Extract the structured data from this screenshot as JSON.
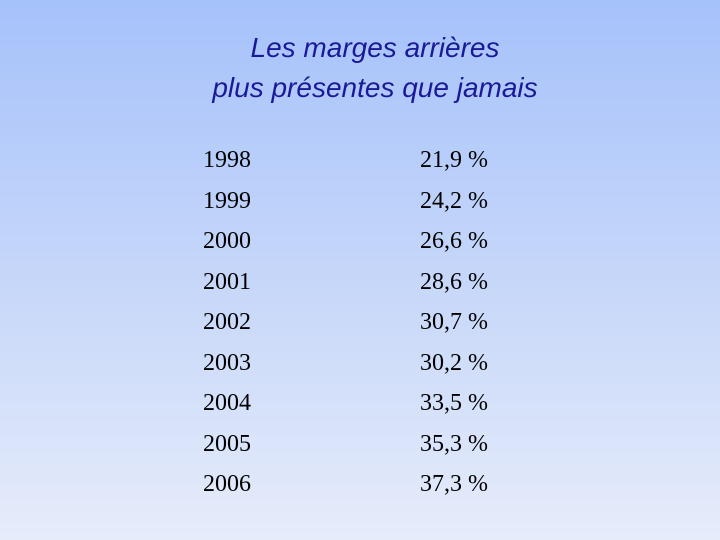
{
  "title": {
    "line1": "Les marges arrières",
    "line2": "plus présentes que jamais"
  },
  "rows": [
    {
      "year": "1998",
      "value": "21,9 %"
    },
    {
      "year": "1999",
      "value": "24,2 %"
    },
    {
      "year": "2000",
      "value": "26,6 %"
    },
    {
      "year": "2001",
      "value": "28,6 %"
    },
    {
      "year": "2002",
      "value": "30,7 %"
    },
    {
      "year": "2003",
      "value": "30,2 %"
    },
    {
      "year": "2004",
      "value": "33,5 %"
    },
    {
      "year": "2005",
      "value": "35,3 %"
    },
    {
      "year": "2006",
      "value": "37,3 %"
    }
  ],
  "colors": {
    "title": "#1a1a99",
    "text": "#000000",
    "background_top": "#a6c2fb",
    "background_bottom": "#e6ecfa"
  }
}
